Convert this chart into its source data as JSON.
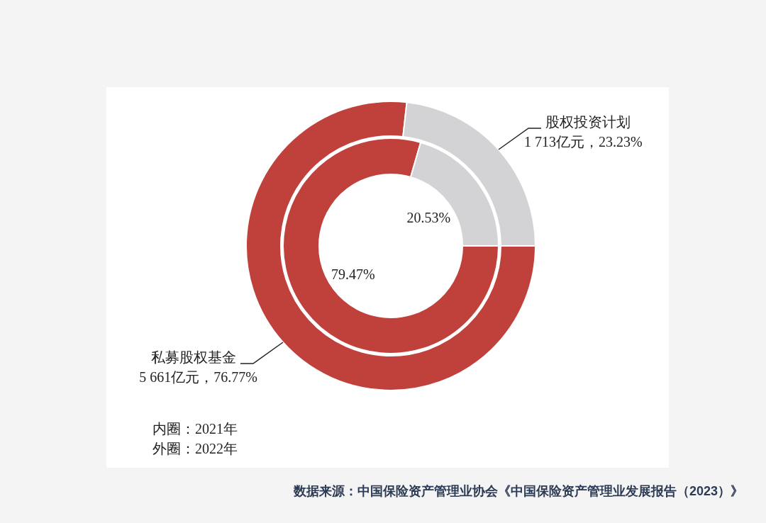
{
  "chart_data": {
    "type": "donut",
    "categories": [
      "私募股权基金",
      "股权投资计划"
    ],
    "colors": [
      "#c0403b",
      "#d3d3d5"
    ],
    "series": [
      {
        "values": [
          79.47,
          20.53
        ],
        "value_labels": [
          "79.47%",
          "20.53%"
        ]
      },
      {
        "values": [
          5661,
          1713
        ],
        "value_labels": [
          "5 661亿元，76.77%",
          "1 713亿元，23.23%"
        ]
      }
    ],
    "annotations": [
      "内圈：2021年",
      "外圈：2022年",
      "数据来源：中国保险资产管理业协会《中国保险资产管理业发展报告（2023）》"
    ]
  }
}
